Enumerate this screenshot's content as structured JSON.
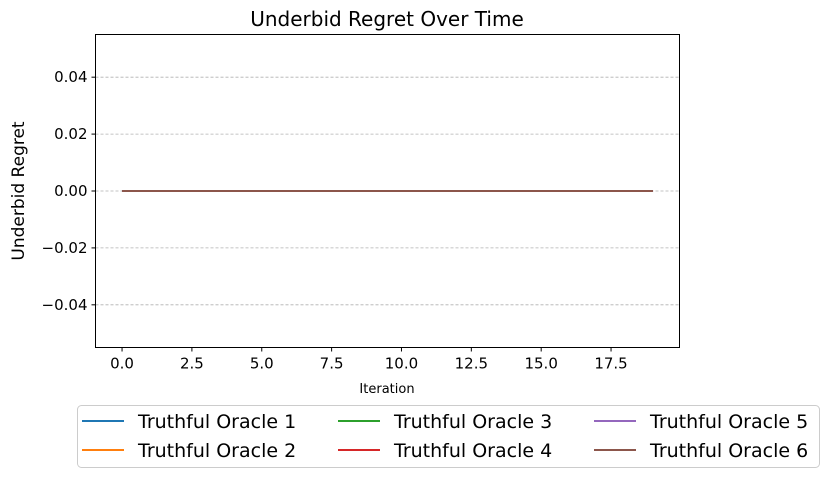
{
  "chart_data": {
    "type": "line",
    "title": "Underbid Regret Over Time",
    "xlabel": "Iteration",
    "ylabel": "Underbid Regret",
    "xlim": [
      -0.95,
      19.95
    ],
    "ylim": [
      -0.055,
      0.055
    ],
    "xticks": [
      0.0,
      2.5,
      5.0,
      7.5,
      10.0,
      12.5,
      15.0,
      17.5
    ],
    "xtick_labels": [
      "0.0",
      "2.5",
      "5.0",
      "7.5",
      "10.0",
      "12.5",
      "15.0",
      "17.5"
    ],
    "yticks": [
      0.04,
      0.02,
      0.0,
      -0.02,
      -0.04
    ],
    "ytick_labels": [
      "0.04",
      "0.02",
      "0.00",
      "−0.02",
      "−0.04"
    ],
    "grid": "horizontal dashed",
    "legend_placement": "below plot, 3 columns",
    "x": [
      0,
      1,
      2,
      3,
      4,
      5,
      6,
      7,
      8,
      9,
      10,
      11,
      12,
      13,
      14,
      15,
      16,
      17,
      18,
      19
    ],
    "series": [
      {
        "name": "Truthful Oracle 1",
        "color": "#1f77b4",
        "values": [
          0,
          0,
          0,
          0,
          0,
          0,
          0,
          0,
          0,
          0,
          0,
          0,
          0,
          0,
          0,
          0,
          0,
          0,
          0,
          0
        ]
      },
      {
        "name": "Truthful Oracle 2",
        "color": "#ff7f0e",
        "values": [
          0,
          0,
          0,
          0,
          0,
          0,
          0,
          0,
          0,
          0,
          0,
          0,
          0,
          0,
          0,
          0,
          0,
          0,
          0,
          0
        ]
      },
      {
        "name": "Truthful Oracle 3",
        "color": "#2ca02c",
        "values": [
          0,
          0,
          0,
          0,
          0,
          0,
          0,
          0,
          0,
          0,
          0,
          0,
          0,
          0,
          0,
          0,
          0,
          0,
          0,
          0
        ]
      },
      {
        "name": "Truthful Oracle 4",
        "color": "#d62728",
        "values": [
          0,
          0,
          0,
          0,
          0,
          0,
          0,
          0,
          0,
          0,
          0,
          0,
          0,
          0,
          0,
          0,
          0,
          0,
          0,
          0
        ]
      },
      {
        "name": "Truthful Oracle 5",
        "color": "#9467bd",
        "values": [
          0,
          0,
          0,
          0,
          0,
          0,
          0,
          0,
          0,
          0,
          0,
          0,
          0,
          0,
          0,
          0,
          0,
          0,
          0,
          0
        ]
      },
      {
        "name": "Truthful Oracle 6",
        "color": "#8c564b",
        "values": [
          0,
          0,
          0,
          0,
          0,
          0,
          0,
          0,
          0,
          0,
          0,
          0,
          0,
          0,
          0,
          0,
          0,
          0,
          0,
          0
        ]
      }
    ]
  }
}
